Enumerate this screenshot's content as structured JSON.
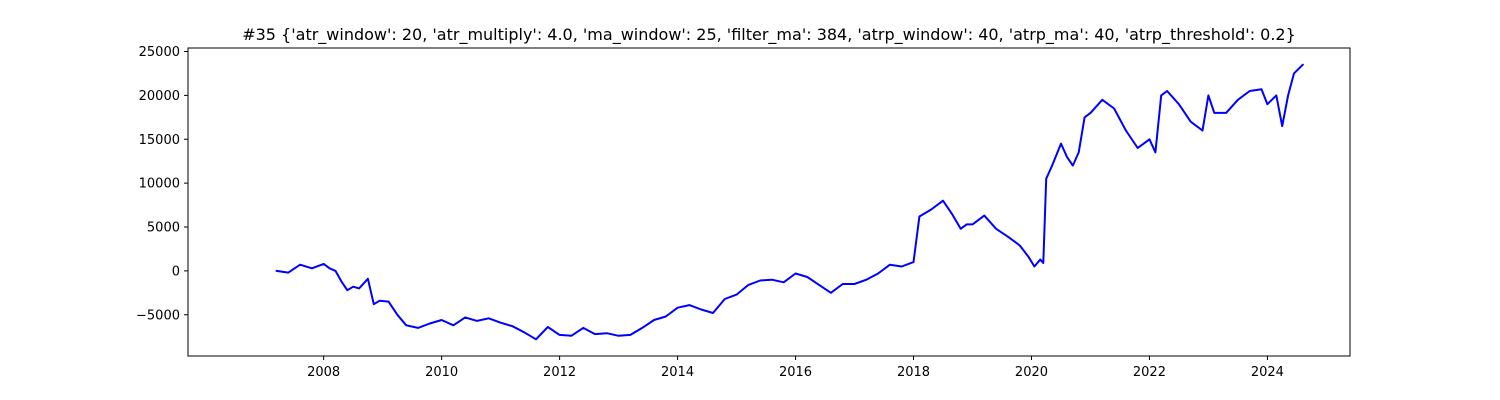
{
  "chart_data": {
    "type": "line",
    "title": "#35 {'atr_window': 20, 'atr_multiply': 4.0, 'ma_window': 25, 'filter_ma': 384, 'atrp_window': 40, 'atrp_ma': 40, 'atrp_threshold': 0.2}",
    "xlabel": "",
    "ylabel": "",
    "x_axis_type": "year",
    "xlim": [
      2005.7,
      2025.4
    ],
    "ylim": [
      -9700,
      25400
    ],
    "xticks": [
      2008,
      2010,
      2012,
      2014,
      2016,
      2018,
      2020,
      2022,
      2024
    ],
    "xtick_labels": [
      "2008",
      "2010",
      "2012",
      "2014",
      "2016",
      "2018",
      "2020",
      "2022",
      "2024"
    ],
    "yticks": [
      -5000,
      0,
      5000,
      10000,
      15000,
      20000,
      25000
    ],
    "ytick_labels": [
      "−5000",
      "0",
      "5000",
      "10000",
      "15000",
      "20000",
      "25000"
    ],
    "grid": false,
    "legend": "none",
    "series": [
      {
        "color": "#0000ff",
        "x": [
          2007.2,
          2007.4,
          2007.6,
          2007.8,
          2008.0,
          2008.1,
          2008.2,
          2008.3,
          2008.4,
          2008.5,
          2008.6,
          2008.75,
          2008.85,
          2008.95,
          2009.1,
          2009.25,
          2009.4,
          2009.6,
          2009.8,
          2010.0,
          2010.2,
          2010.4,
          2010.6,
          2010.8,
          2011.0,
          2011.2,
          2011.4,
          2011.6,
          2011.8,
          2012.0,
          2012.2,
          2012.4,
          2012.6,
          2012.8,
          2013.0,
          2013.2,
          2013.4,
          2013.6,
          2013.8,
          2014.0,
          2014.2,
          2014.4,
          2014.6,
          2014.8,
          2015.0,
          2015.2,
          2015.4,
          2015.6,
          2015.8,
          2016.0,
          2016.2,
          2016.4,
          2016.6,
          2016.8,
          2017.0,
          2017.2,
          2017.4,
          2017.6,
          2017.8,
          2018.0,
          2018.1,
          2018.3,
          2018.5,
          2018.65,
          2018.8,
          2018.9,
          2019.0,
          2019.2,
          2019.4,
          2019.6,
          2019.8,
          2019.95,
          2020.05,
          2020.15,
          2020.2,
          2020.25,
          2020.35,
          2020.5,
          2020.6,
          2020.7,
          2020.8,
          2020.9,
          2021.0,
          2021.2,
          2021.4,
          2021.6,
          2021.8,
          2022.0,
          2022.1,
          2022.2,
          2022.3,
          2022.5,
          2022.7,
          2022.9,
          2023.0,
          2023.1,
          2023.3,
          2023.5,
          2023.7,
          2023.9,
          2024.0,
          2024.15,
          2024.25,
          2024.35,
          2024.45,
          2024.6
        ],
        "y": [
          0,
          -200,
          700,
          300,
          800,
          300,
          0,
          -1200,
          -2200,
          -1800,
          -2000,
          -900,
          -3800,
          -3400,
          -3500,
          -5000,
          -6200,
          -6500,
          -6000,
          -5600,
          -6200,
          -5300,
          -5700,
          -5400,
          -5900,
          -6300,
          -7000,
          -7800,
          -6400,
          -7300,
          -7400,
          -6500,
          -7200,
          -7100,
          -7400,
          -7300,
          -6500,
          -5600,
          -5200,
          -4200,
          -3900,
          -4400,
          -4800,
          -3200,
          -2700,
          -1600,
          -1100,
          -1000,
          -1300,
          -300,
          -700,
          -1600,
          -2500,
          -1500,
          -1500,
          -1000,
          -300,
          700,
          500,
          1000,
          6200,
          7000,
          8000,
          6500,
          4800,
          5300,
          5300,
          6300,
          4800,
          3900,
          2900,
          1600,
          500,
          1300,
          900,
          10500,
          12000,
          14500,
          13000,
          12000,
          13500,
          17500,
          18000,
          19500,
          18500,
          16000,
          14000,
          15000,
          13500,
          20000,
          20500,
          19000,
          17000,
          16000,
          20000,
          18000,
          18000,
          19500,
          20500,
          20700,
          19000,
          20000,
          16500,
          20000,
          22500,
          23500
        ]
      }
    ]
  }
}
